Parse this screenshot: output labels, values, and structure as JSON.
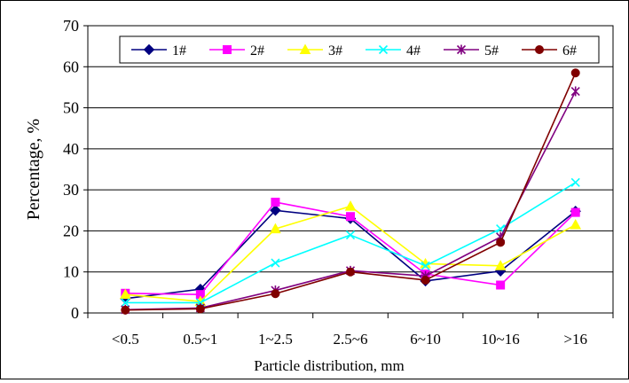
{
  "chart_data": {
    "type": "line",
    "title": "",
    "xlabel": "Particle distribution, mm",
    "ylabel": "Percentage, %",
    "categories": [
      "<0.5",
      "0.5~1",
      "1~2.5",
      "2.5~6",
      "6~10",
      "10~16",
      ">16"
    ],
    "ylim": [
      0,
      70
    ],
    "yticks": [
      0,
      10,
      20,
      30,
      40,
      50,
      60,
      70
    ],
    "grid": "horizontal",
    "legend_position": "top",
    "series": [
      {
        "name": "1#",
        "color": "#000080",
        "marker": "diamond",
        "values": [
          3.5,
          5.8,
          25.0,
          23.0,
          7.8,
          10.2,
          24.8
        ]
      },
      {
        "name": "2#",
        "color": "#FF00FF",
        "marker": "square",
        "values": [
          4.8,
          4.5,
          27.0,
          23.5,
          9.5,
          6.8,
          24.5
        ]
      },
      {
        "name": "3#",
        "color": "#FFFF00",
        "marker": "triangle",
        "values": [
          4.5,
          2.8,
          20.5,
          26.0,
          12.0,
          11.5,
          21.5
        ]
      },
      {
        "name": "4#",
        "color": "#00FFFF",
        "marker": "x",
        "values": [
          2.5,
          2.5,
          12.2,
          19.0,
          11.5,
          20.5,
          31.8
        ]
      },
      {
        "name": "5#",
        "color": "#800080",
        "marker": "star",
        "values": [
          0.8,
          1.2,
          5.5,
          10.3,
          9.0,
          18.5,
          54.0
        ]
      },
      {
        "name": "6#",
        "color": "#800000",
        "marker": "circle",
        "values": [
          0.7,
          1.0,
          4.7,
          10.0,
          8.0,
          17.2,
          58.5
        ]
      }
    ]
  }
}
